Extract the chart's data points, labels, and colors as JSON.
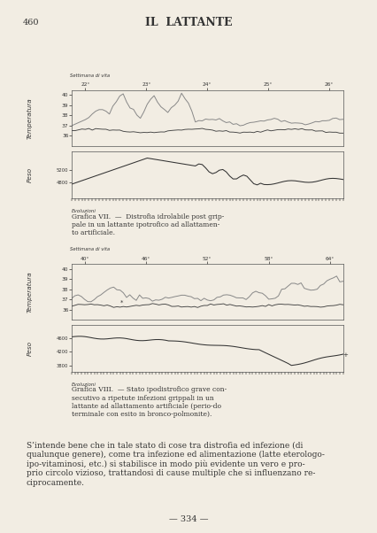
{
  "page_title": "IL  LATTANTE",
  "page_number": "460",
  "background_color": "#f2ede3",
  "text_color": "#1a1a1a",
  "chart1": {
    "weeks": [
      "22°",
      "23°",
      "24°",
      "25°",
      "26°"
    ],
    "settimana_label": "Settimana di vita",
    "evoluzioni_label": "Evoluzioni",
    "temp_ylabel": "Temperatura",
    "peso_ylabel": "Peso",
    "caption": "Grafica VII.  —  Distrofia idrolabile post grip-\npale in un lattante ipotrofico ad allattamen-\nto artificiale.",
    "temp_line1_color": "#888888",
    "temp_line2_color": "#444444",
    "peso_line_color": "#333333"
  },
  "chart2": {
    "weeks": [
      "40°",
      "46°",
      "52°",
      "58°",
      "64°"
    ],
    "settimana_label": "Settimana di vita",
    "evoluzioni_label": "Evoluzioni",
    "temp_ylabel": "Temperatura",
    "peso_ylabel": "Peso",
    "caption": "Grafica VIII.  — Stato ipodistrofico grave con-\nsecutivo a ripetute infezioni grippali in un\nlattante ad allattamento artificiale (perio-do\nterminale con esito in bronco-polmonite).",
    "temp_line1_color": "#888888",
    "temp_line2_color": "#444444",
    "peso_line_color": "#333333"
  },
  "body_text": "S’intende bene che in tale stato di cose tra distrofia ed infezione (di\nqualunque genere), come tra infezione ed alimentazione (latte eterologo-\nipo-vitaminosi, etc.) si stabilisce in modo più evidente un vero e pro-\nprio circolo vizioso, trattandosi di cause multiple che si influenzano re-\nciprocamente.",
  "footer": "— 334 —"
}
